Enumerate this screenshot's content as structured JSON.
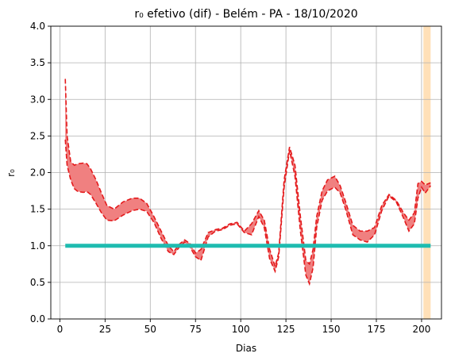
{
  "chart_data": {
    "type": "area",
    "title": "r₀ efetivo (dif) - Belém - PA - 18/10/2020",
    "xlabel": "Dias",
    "ylabel": "r₀",
    "xlim": [
      -5,
      211
    ],
    "ylim": [
      0.0,
      4.0
    ],
    "xticks": [
      0,
      25,
      50,
      75,
      100,
      125,
      150,
      175,
      200
    ],
    "yticks": [
      0.0,
      0.5,
      1.0,
      1.5,
      2.0,
      2.5,
      3.0,
      3.5,
      4.0
    ],
    "xtick_labels": [
      "0",
      "25",
      "50",
      "75",
      "100",
      "125",
      "150",
      "175",
      "200"
    ],
    "ytick_labels": [
      "0.0",
      "0.5",
      "1.0",
      "1.5",
      "2.0",
      "2.5",
      "3.0",
      "3.5",
      "4.0"
    ],
    "grid": true,
    "x": [
      3,
      4,
      6,
      8,
      10,
      13,
      15,
      17,
      20,
      23,
      26,
      30,
      35,
      40,
      44,
      48,
      52,
      56,
      60,
      63,
      66,
      69,
      72,
      75,
      78,
      82,
      86,
      90,
      94,
      98,
      102,
      106,
      110,
      113,
      116,
      119,
      121,
      124,
      127,
      130,
      133,
      136,
      138,
      140,
      142,
      145,
      148,
      152,
      155,
      158,
      162,
      166,
      170,
      174,
      178,
      182,
      186,
      190,
      193,
      196,
      198,
      200,
      202,
      205
    ],
    "series": [
      {
        "values": [
          3.28,
          2.5,
          2.15,
          2.1,
          2.12,
          2.13,
          2.12,
          2.05,
          1.9,
          1.72,
          1.55,
          1.5,
          1.6,
          1.65,
          1.65,
          1.58,
          1.4,
          1.2,
          1.0,
          0.92,
          1.02,
          1.08,
          1.03,
          0.9,
          0.95,
          1.18,
          1.22,
          1.24,
          1.3,
          1.32,
          1.2,
          1.3,
          1.48,
          1.35,
          0.95,
          0.72,
          0.9,
          1.9,
          2.35,
          2.1,
          1.4,
          0.8,
          0.75,
          0.95,
          1.4,
          1.75,
          1.9,
          1.95,
          1.82,
          1.6,
          1.28,
          1.2,
          1.2,
          1.25,
          1.55,
          1.7,
          1.62,
          1.45,
          1.35,
          1.45,
          1.85,
          1.88,
          1.83,
          1.86
        ]
      },
      {
        "values": [
          2.45,
          2.1,
          1.9,
          1.78,
          1.74,
          1.73,
          1.74,
          1.7,
          1.58,
          1.45,
          1.35,
          1.34,
          1.42,
          1.48,
          1.5,
          1.47,
          1.32,
          1.1,
          0.92,
          0.88,
          0.98,
          1.05,
          0.98,
          0.85,
          0.8,
          1.12,
          1.2,
          1.22,
          1.28,
          1.3,
          1.18,
          1.15,
          1.4,
          1.25,
          0.82,
          0.65,
          0.85,
          1.8,
          2.3,
          1.95,
          1.2,
          0.6,
          0.48,
          0.7,
          1.25,
          1.62,
          1.75,
          1.8,
          1.72,
          1.5,
          1.15,
          1.08,
          1.05,
          1.15,
          1.48,
          1.68,
          1.6,
          1.38,
          1.2,
          1.3,
          1.65,
          1.8,
          1.72,
          1.82
        ]
      }
    ],
    "reference_line": {
      "y": 1.0,
      "x_start": 3,
      "x_end": 205,
      "color": "#1fbcb0"
    },
    "highlight_band": {
      "x_start": 201,
      "x_end": 205,
      "color": "#ffe0b8"
    },
    "colors": {
      "fill": "#f08080",
      "line": "#e41a1c",
      "grid": "#b0b0b0"
    }
  }
}
